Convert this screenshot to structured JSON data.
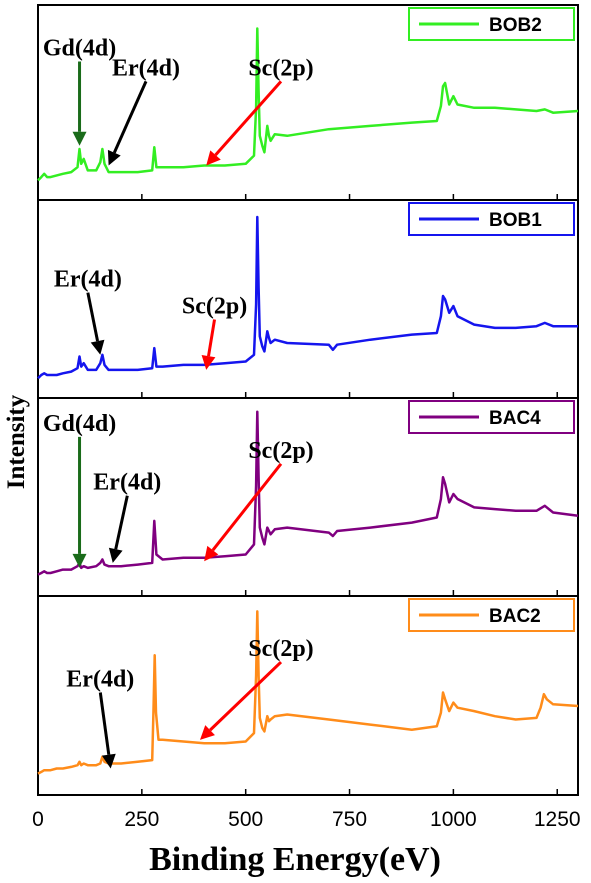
{
  "chart_data": {
    "type": "line",
    "xlabel": "Binding Energy(eV)",
    "ylabel": "Intensity",
    "xlim": [
      0,
      1300
    ],
    "x_ticks": [
      0,
      250,
      500,
      750,
      1000,
      1250
    ],
    "panels": [
      {
        "name": "BOB2",
        "color": "#33ee22",
        "series": {
          "name": "BOB2",
          "x": [
            0,
            8,
            15,
            22,
            30,
            45,
            60,
            80,
            95,
            100,
            104,
            110,
            120,
            140,
            150,
            155,
            160,
            170,
            200,
            240,
            275,
            280,
            285,
            300,
            350,
            400,
            450,
            500,
            520,
            525,
            528,
            531,
            534,
            540,
            545,
            552,
            556,
            560,
            570,
            600,
            700,
            800,
            900,
            960,
            970,
            975,
            980,
            990,
            1000,
            1010,
            1050,
            1100,
            1150,
            1200,
            1220,
            1240,
            1300
          ],
          "y": [
            0.01,
            0.03,
            0.05,
            0.03,
            0.03,
            0.04,
            0.05,
            0.06,
            0.09,
            0.2,
            0.11,
            0.14,
            0.07,
            0.07,
            0.12,
            0.2,
            0.11,
            0.06,
            0.06,
            0.06,
            0.07,
            0.21,
            0.09,
            0.09,
            0.09,
            0.1,
            0.1,
            0.11,
            0.16,
            0.45,
            0.93,
            0.55,
            0.28,
            0.22,
            0.18,
            0.34,
            0.28,
            0.25,
            0.29,
            0.28,
            0.32,
            0.34,
            0.36,
            0.37,
            0.46,
            0.58,
            0.6,
            0.47,
            0.52,
            0.47,
            0.45,
            0.45,
            0.44,
            0.43,
            0.44,
            0.42,
            0.43
          ]
        },
        "legend": "BOB2",
        "annotations": [
          {
            "text": "Gd(4d)",
            "arrow_color": "#1a6b1a",
            "from": [
              100,
              0.73
            ],
            "to": [
              100,
              0.22
            ]
          },
          {
            "text": "Er(4d)",
            "arrow_color": "#000000",
            "from": [
              260,
              0.61
            ],
            "to": [
              170,
              0.1
            ]
          },
          {
            "text": "Sc(2p)",
            "arrow_color": "#ff0000",
            "from": [
              585,
              0.61
            ],
            "to": [
              405,
              0.1
            ]
          }
        ]
      },
      {
        "name": "BOB1",
        "color": "#1515ee",
        "series": {
          "name": "BOB1",
          "x": [
            0,
            8,
            15,
            22,
            30,
            45,
            60,
            80,
            95,
            100,
            104,
            110,
            120,
            140,
            150,
            155,
            160,
            170,
            200,
            240,
            275,
            280,
            285,
            300,
            350,
            400,
            450,
            500,
            520,
            525,
            528,
            531,
            534,
            540,
            545,
            552,
            556,
            560,
            570,
            600,
            700,
            710,
            720,
            800,
            900,
            960,
            970,
            975,
            980,
            990,
            1000,
            1010,
            1050,
            1100,
            1150,
            1200,
            1220,
            1240,
            1300
          ],
          "y": [
            0.01,
            0.03,
            0.04,
            0.03,
            0.03,
            0.03,
            0.04,
            0.05,
            0.07,
            0.14,
            0.08,
            0.1,
            0.06,
            0.06,
            0.1,
            0.15,
            0.09,
            0.06,
            0.06,
            0.06,
            0.07,
            0.19,
            0.08,
            0.08,
            0.09,
            0.09,
            0.1,
            0.11,
            0.15,
            0.45,
            0.97,
            0.55,
            0.26,
            0.2,
            0.17,
            0.29,
            0.25,
            0.22,
            0.24,
            0.22,
            0.21,
            0.18,
            0.21,
            0.24,
            0.27,
            0.28,
            0.38,
            0.5,
            0.48,
            0.4,
            0.44,
            0.38,
            0.33,
            0.31,
            0.31,
            0.32,
            0.34,
            0.32,
            0.32
          ]
        },
        "legend": "BOB1",
        "annotations": [
          {
            "text": "Er(4d)",
            "arrow_color": "#000000",
            "from": [
              120,
              0.52
            ],
            "to": [
              150,
              0.15
            ]
          },
          {
            "text": "Sc(2p)",
            "arrow_color": "#ff0000",
            "from": [
              425,
              0.36
            ],
            "to": [
              405,
              0.06
            ]
          }
        ]
      },
      {
        "name": "BAC4",
        "color": "#800080",
        "series": {
          "name": "BAC4",
          "x": [
            0,
            8,
            15,
            22,
            30,
            45,
            60,
            80,
            95,
            100,
            104,
            110,
            120,
            140,
            150,
            155,
            160,
            170,
            200,
            240,
            275,
            280,
            285,
            300,
            350,
            400,
            450,
            500,
            520,
            525,
            528,
            531,
            534,
            540,
            545,
            552,
            556,
            560,
            570,
            600,
            700,
            710,
            720,
            800,
            900,
            960,
            970,
            975,
            980,
            990,
            1000,
            1010,
            1050,
            1100,
            1150,
            1200,
            1220,
            1240,
            1300
          ],
          "y": [
            0.02,
            0.03,
            0.04,
            0.03,
            0.03,
            0.04,
            0.05,
            0.05,
            0.07,
            0.09,
            0.06,
            0.07,
            0.06,
            0.07,
            0.09,
            0.11,
            0.08,
            0.07,
            0.07,
            0.08,
            0.09,
            0.34,
            0.14,
            0.11,
            0.12,
            0.12,
            0.13,
            0.14,
            0.2,
            0.55,
            0.99,
            0.6,
            0.3,
            0.24,
            0.2,
            0.3,
            0.28,
            0.26,
            0.29,
            0.3,
            0.27,
            0.25,
            0.28,
            0.3,
            0.33,
            0.36,
            0.47,
            0.6,
            0.56,
            0.45,
            0.5,
            0.47,
            0.42,
            0.41,
            0.4,
            0.4,
            0.43,
            0.39,
            0.37
          ]
        },
        "legend": "BAC4",
        "annotations": [
          {
            "text": "Gd(4d)",
            "arrow_color": "#1a6b1a",
            "from": [
              100,
              0.84
            ],
            "to": [
              100,
              0.06
            ]
          },
          {
            "text": "Er(4d)",
            "arrow_color": "#000000",
            "from": [
              215,
              0.49
            ],
            "to": [
              180,
              0.09
            ]
          },
          {
            "text": "Sc(2p)",
            "arrow_color": "#ff0000",
            "from": [
              585,
              0.68
            ],
            "to": [
              400,
              0.1
            ]
          }
        ]
      },
      {
        "name": "BAC2",
        "color": "#ff8c1a",
        "series": {
          "name": "BAC2",
          "x": [
            0,
            8,
            15,
            22,
            30,
            45,
            60,
            80,
            95,
            100,
            104,
            110,
            120,
            140,
            150,
            155,
            160,
            170,
            200,
            240,
            275,
            278,
            281,
            284,
            290,
            300,
            350,
            400,
            450,
            500,
            520,
            525,
            528,
            531,
            534,
            540,
            545,
            552,
            556,
            560,
            570,
            600,
            700,
            800,
            900,
            960,
            970,
            975,
            980,
            990,
            1000,
            1010,
            1050,
            1100,
            1150,
            1200,
            1210,
            1218,
            1225,
            1240,
            1300
          ],
          "y": [
            0.02,
            0.03,
            0.04,
            0.04,
            0.04,
            0.05,
            0.05,
            0.06,
            0.07,
            0.09,
            0.07,
            0.08,
            0.07,
            0.07,
            0.08,
            0.12,
            0.09,
            0.08,
            0.08,
            0.09,
            0.1,
            0.4,
            0.72,
            0.38,
            0.22,
            0.22,
            0.21,
            0.2,
            0.2,
            0.21,
            0.26,
            0.6,
            0.98,
            0.6,
            0.35,
            0.29,
            0.27,
            0.36,
            0.33,
            0.34,
            0.36,
            0.37,
            0.34,
            0.31,
            0.28,
            0.3,
            0.38,
            0.5,
            0.46,
            0.39,
            0.44,
            0.41,
            0.39,
            0.36,
            0.34,
            0.35,
            0.41,
            0.49,
            0.46,
            0.43,
            0.42
          ]
        },
        "legend": "BAC2",
        "annotations": [
          {
            "text": "Er(4d)",
            "arrow_color": "#000000",
            "from": [
              150,
              0.5
            ],
            "to": [
              175,
              0.05
            ]
          },
          {
            "text": "Sc(2p)",
            "arrow_color": "#ff0000",
            "from": [
              585,
              0.68
            ],
            "to": [
              390,
              0.22
            ]
          }
        ]
      }
    ]
  }
}
